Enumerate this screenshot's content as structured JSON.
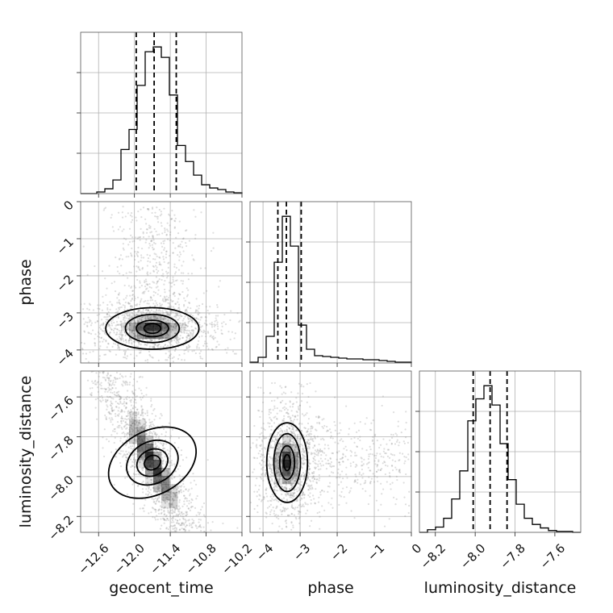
{
  "chart_data": {
    "type": "corner",
    "parameters": [
      "geocent_time",
      "phase",
      "luminosity_distance"
    ],
    "labels": {
      "geocent_time": "geocent_time",
      "phase": "phase",
      "luminosity_distance": "luminosity_distance"
    },
    "ranges": {
      "geocent_time": [
        -12.9,
        -10.2
      ],
      "phase": [
        -4.35,
        0.0
      ],
      "luminosity_distance": [
        -8.28,
        -7.47
      ]
    },
    "ticks": {
      "geocent_time": [
        "−12.6",
        "−12.0",
        "−11.4",
        "−10.8",
        "−10.2"
      ],
      "phase": [
        "−4",
        "−3",
        "−2",
        "−1",
        "0"
      ],
      "luminosity_distance": [
        "−8.2",
        "−8.0",
        "−7.8",
        "−7.6"
      ]
    },
    "tick_values": {
      "geocent_time": [
        -12.6,
        -12.0,
        -11.4,
        -10.8,
        -10.2
      ],
      "phase": [
        -4,
        -3,
        -2,
        -1,
        0
      ],
      "luminosity_distance": [
        -8.2,
        -8.0,
        -7.8,
        -7.6
      ]
    },
    "quantiles": {
      "geocent_time": [
        -11.97,
        -11.67,
        -11.3
      ],
      "phase": [
        -3.6,
        -3.37,
        -2.97
      ],
      "luminosity_distance": [
        -8.01,
        -7.925,
        -7.84
      ]
    },
    "histograms": {
      "geocent_time": {
        "edges": [
          -12.9,
          -12.765,
          -12.63,
          -12.495,
          -12.36,
          -12.225,
          -12.09,
          -11.955,
          -11.82,
          -11.685,
          -11.55,
          -11.415,
          -11.28,
          -11.145,
          -11.01,
          -10.875,
          -10.74,
          -10.605,
          -10.47,
          -10.335,
          -10.2
        ],
        "counts": [
          0,
          0,
          2,
          6,
          17,
          55,
          80,
          135,
          177,
          183,
          170,
          123,
          60,
          40,
          23,
          11,
          7,
          5,
          2,
          1
        ]
      },
      "phase": {
        "edges": [
          -4.35,
          -4.1325,
          -3.915,
          -3.6975,
          -3.48,
          -3.2625,
          -3.045,
          -2.8275,
          -2.61,
          -2.3925,
          -2.175,
          -1.9575,
          -1.74,
          -1.5225,
          -1.305,
          -1.0875,
          -0.87,
          -0.6525,
          -0.435,
          -0.2175,
          0.0
        ],
        "counts": [
          1,
          7,
          33,
          125,
          182,
          145,
          47,
          17,
          9,
          8,
          7,
          6,
          5,
          5,
          4,
          4,
          3,
          2,
          1,
          1
        ]
      },
      "luminosity_distance": {
        "edges": [
          -8.28,
          -8.2395,
          -8.199,
          -8.1585,
          -8.118,
          -8.0775,
          -8.037,
          -7.9965,
          -7.956,
          -7.9155,
          -7.875,
          -7.8345,
          -7.794,
          -7.7535,
          -7.713,
          -7.6725,
          -7.632,
          -7.5915,
          -7.551,
          -7.5105,
          -7.47
        ],
        "counts": [
          0,
          3,
          6,
          16,
          38,
          70,
          127,
          152,
          167,
          145,
          101,
          60,
          32,
          16,
          9,
          5,
          2,
          1,
          1,
          0
        ]
      }
    },
    "pairs": [
      {
        "x": "geocent_time",
        "y": "phase",
        "peak": [
          -11.7,
          -3.42
        ],
        "contours": [
          {
            "rx": 0.14,
            "ry": 0.13,
            "rot": 0
          },
          {
            "rx": 0.27,
            "ry": 0.22,
            "rot": 0
          },
          {
            "rx": 0.45,
            "ry": 0.38,
            "rot": 0
          },
          {
            "rx": 0.78,
            "ry": 0.56,
            "rot": 0
          }
        ]
      },
      {
        "x": "geocent_time",
        "y": "luminosity_distance",
        "peak": [
          -11.7,
          -7.93
        ],
        "contours": [
          {
            "rx": 0.14,
            "ry": 0.035,
            "rot": -28
          },
          {
            "rx": 0.27,
            "ry": 0.065,
            "rot": -28
          },
          {
            "rx": 0.45,
            "ry": 0.105,
            "rot": -28
          },
          {
            "rx": 0.78,
            "ry": 0.16,
            "rot": -28
          }
        ]
      },
      {
        "x": "phase",
        "y": "luminosity_distance",
        "peak": [
          -3.35,
          -7.93
        ],
        "contours": [
          {
            "rx": 0.09,
            "ry": 0.04,
            "rot": 0
          },
          {
            "rx": 0.2,
            "ry": 0.085,
            "rot": 0
          },
          {
            "rx": 0.36,
            "ry": 0.145,
            "rot": 0
          },
          {
            "rx": 0.55,
            "ry": 0.2,
            "rot": 0
          }
        ]
      }
    ]
  }
}
